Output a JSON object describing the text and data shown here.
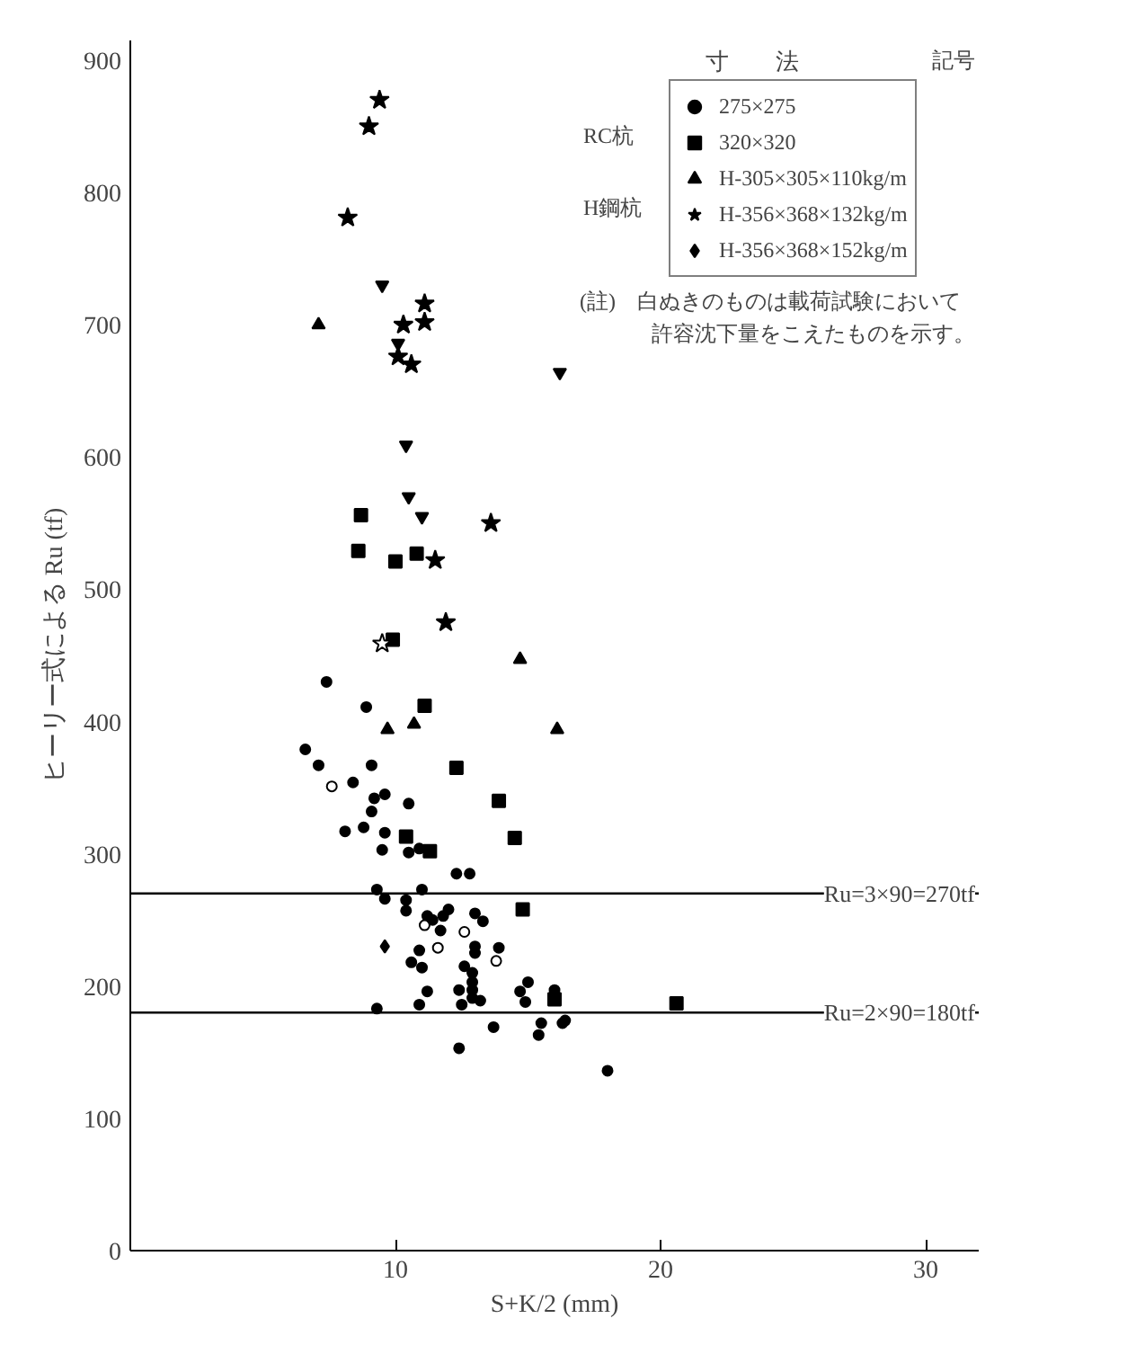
{
  "chart_data": {
    "type": "scatter",
    "xlabel": "S+K/2 (mm)",
    "ylabel": "ヒーリー式による Ru (tf)",
    "xlim": [
      0,
      32
    ],
    "xticks": [
      10,
      20,
      30
    ],
    "ylim": [
      0,
      915
    ],
    "yticks": [
      0,
      100,
      200,
      300,
      400,
      500,
      600,
      700,
      800,
      900
    ],
    "grid": false,
    "legend": "top right",
    "legend_title": "寸　　法",
    "annotations": [
      "記号",
      "RC杭",
      "H鋼杭",
      "(註)　白ぬきのものは載荷試験において",
      "許容沈下量をこえたものを示す。"
    ],
    "ref_lines": [
      {
        "axis": "y",
        "value": 270,
        "label": "Ru=3×90=270tf"
      },
      {
        "axis": "y",
        "value": 180,
        "label": "Ru=2×90=180tf"
      }
    ],
    "series": [
      {
        "name": "275×275",
        "color": "#000000",
        "marker": "circle",
        "x": [
          7.4,
          8.9,
          6.6,
          7.1,
          9.1,
          8.4,
          9.2,
          9.6,
          10.5,
          9.1,
          8.1,
          8.8,
          9.6,
          9.5,
          10.5,
          10.9,
          12.3,
          12.8,
          9.3,
          11.0,
          9.6,
          10.4,
          10.4,
          11.2,
          11.4,
          11.8,
          12.0,
          13.0,
          13.3,
          11.7,
          13.0,
          13.0,
          13.9,
          10.6,
          11.0,
          10.9,
          12.6,
          12.9,
          12.9,
          12.9,
          11.2,
          12.4,
          12.9,
          12.5,
          13.2,
          10.9,
          9.3,
          14.7,
          15.0,
          14.9,
          16.0,
          13.7,
          15.5,
          16.3,
          16.4,
          15.4,
          12.4,
          18.0
        ],
        "values": [
          430,
          411,
          379,
          367,
          367,
          354,
          342,
          345,
          338,
          332,
          317,
          320,
          316,
          303,
          301,
          304,
          285,
          285,
          273,
          273,
          266,
          265,
          257,
          253,
          250,
          253,
          258,
          255,
          249,
          242,
          230,
          225,
          229,
          218,
          214,
          227,
          215,
          210,
          203,
          197,
          196,
          197,
          191,
          186,
          189,
          186,
          183,
          196,
          203,
          188,
          197,
          169,
          172,
          172,
          174,
          163,
          153,
          136
        ]
      },
      {
        "name": "320×320",
        "color": "#000000",
        "marker": "square",
        "x": [
          8.7,
          8.6,
          10.0,
          10.8,
          9.9,
          11.1,
          12.3,
          13.9,
          14.5,
          10.4,
          11.3,
          14.8,
          16.0,
          20.6
        ],
        "values": [
          556,
          529,
          521,
          527,
          462,
          412,
          365,
          340,
          312,
          313,
          302,
          258,
          190,
          187
        ]
      },
      {
        "name": "H-305×305×110kg/m",
        "color": "#000000",
        "marker": "triangle",
        "x": [
          7.1,
          14.7,
          9.7,
          10.7,
          16.1
        ],
        "values": [
          700,
          447,
          394,
          398,
          394
        ]
      },
      {
        "name": "H-356×368×132kg/m",
        "color": "#000000",
        "marker": "star",
        "x": [
          9.4,
          9.0,
          8.2,
          11.1,
          10.3,
          11.1,
          10.1,
          10.6,
          13.6,
          11.5,
          11.9
        ],
        "values": [
          870,
          850,
          781,
          716,
          700,
          702,
          676,
          670,
          550,
          522,
          475
        ]
      },
      {
        "name": "H-356×368×152kg/m",
        "color": "#000000",
        "marker": "diamond",
        "x": [
          9.6
        ],
        "values": [
          230
        ]
      },
      {
        "color": "#ffffff",
        "marker": "circle",
        "x": [
          7.6,
          11.1,
          11.6,
          12.6,
          13.8
        ],
        "values": [
          351,
          246,
          229,
          241,
          219
        ]
      },
      {
        "color": "#ffffff",
        "marker": "star",
        "x": [
          9.5
        ],
        "values": [
          459
        ]
      },
      {
        "color": "#000000",
        "x": [
          9.5,
          10.1,
          10.4,
          10.5,
          11.0,
          16.2
        ],
        "values": [
          730,
          686,
          609,
          570,
          555,
          664
        ]
      }
    ]
  }
}
